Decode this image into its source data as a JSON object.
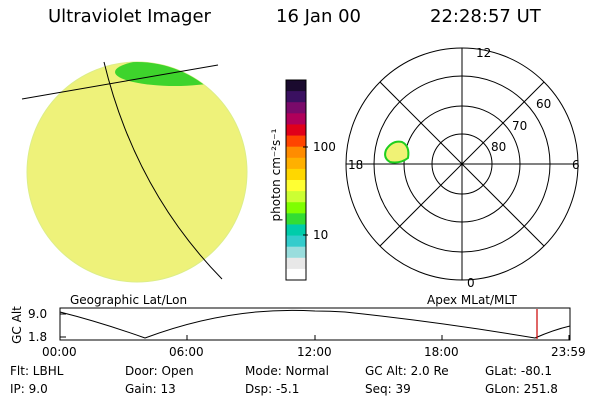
{
  "header": {
    "instrument": "Ultraviolet Imager",
    "date": "16 Jan 00",
    "time": "22:28:57 UT"
  },
  "colors": {
    "disk_fill": "#eef27a",
    "disk_edge": "#1fcf1f",
    "oval_fill": "#f0f275",
    "marker": "#cc0000"
  },
  "colorbar": {
    "unit_label": "photon cm⁻²s⁻¹",
    "tick_100": "100",
    "tick_10": "10",
    "colors": [
      "#1a0a2e",
      "#3a1060",
      "#7a0a6a",
      "#b0005a",
      "#e0001a",
      "#ff4500",
      "#ff8c00",
      "#ffb000",
      "#ffd700",
      "#ffff33",
      "#ccff33",
      "#7fff00",
      "#33dd33",
      "#00ccaa",
      "#33cccc",
      "#99dddd",
      "#e8e8e8",
      "#ffffff"
    ]
  },
  "left_panel": {
    "label": "Geographic Lat/Lon"
  },
  "polar": {
    "label": "Apex MLat/MLT",
    "mlt_top": "12",
    "mlt_left": "18",
    "mlt_right": "6",
    "mlt_bottom": "0",
    "lat_60": "60",
    "lat_70": "70",
    "lat_80": "80"
  },
  "altitude_plot": {
    "ylabel": "GC Alt",
    "ytick_top": "9.0",
    "ytick_bottom": "1.8",
    "xticks": [
      "00:00",
      "06:00",
      "12:00",
      "18:00",
      "23:59"
    ]
  },
  "info": {
    "flt": "Flt: LBHL",
    "ip": "IP:  9.0",
    "door": "Door: Open",
    "gain": "Gain: 13",
    "mode": "Mode: Normal",
    "dsp": "Dsp:    -5.1",
    "gcalt": "GC Alt: 2.0 Re",
    "seq": "Seq: 39",
    "glat": "GLat: -80.1",
    "glon": "GLon: 251.8"
  }
}
